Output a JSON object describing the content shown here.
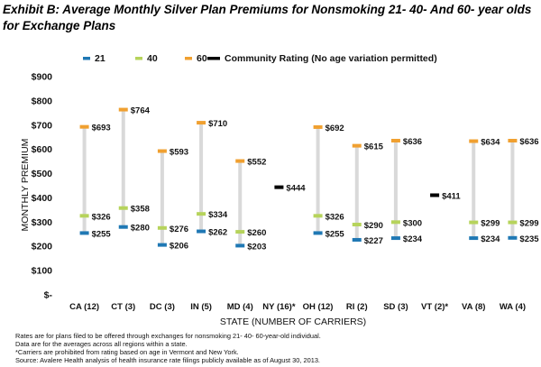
{
  "title": "Exhibit B: Average Monthly Silver Plan Premiums for Nonsmoking 21- 40- And 60- year olds for Exchange Plans",
  "chart_data": {
    "type": "range-dot",
    "xlabel": "STATE (NUMBER OF CARRIERS)",
    "ylabel": "MONTHLY PREMIUM",
    "ylim": [
      0,
      900
    ],
    "yticks": [
      0,
      100,
      200,
      300,
      400,
      500,
      600,
      700,
      800,
      900
    ],
    "ytick_labels": [
      "$-",
      "$100",
      "$200",
      "$300",
      "$400",
      "$500",
      "$600",
      "$700",
      "$800",
      "$900"
    ],
    "grid": false,
    "legend_position": "top",
    "categories": [
      "CA (12)",
      "CT (3)",
      "DC (3)",
      "IN (5)",
      "MD (4)",
      "NY (16)*",
      "OH (12)",
      "RI (2)",
      "SD (3)",
      "VT (2)*",
      "VA (8)",
      "WA (4)"
    ],
    "series": [
      {
        "name": "21",
        "color": "#1f78b4",
        "values": [
          255,
          280,
          206,
          262,
          203,
          null,
          255,
          227,
          234,
          null,
          234,
          235
        ],
        "labels": [
          "$255",
          "$280",
          "$206",
          "$262",
          "$203",
          "",
          "$255",
          "$227",
          "$234",
          "",
          "$234",
          "$235"
        ]
      },
      {
        "name": "40",
        "color": "#b6d35b",
        "values": [
          326,
          358,
          276,
          334,
          260,
          null,
          326,
          290,
          300,
          null,
          299,
          299
        ],
        "labels": [
          "$326",
          "$358",
          "$276",
          "$334",
          "$260",
          "",
          "$326",
          "$290",
          "$300",
          "",
          "$299",
          "$299"
        ]
      },
      {
        "name": "60",
        "color": "#f0a030",
        "values": [
          693,
          764,
          593,
          710,
          552,
          null,
          692,
          615,
          636,
          null,
          634,
          636
        ],
        "labels": [
          "$693",
          "$764",
          "$593",
          "$710",
          "$552",
          "",
          "$692",
          "$615",
          "$636",
          "",
          "$634",
          "$636"
        ]
      },
      {
        "name": "Community Rating (No age variation permitted)",
        "color": "#000000",
        "values": [
          null,
          null,
          null,
          null,
          null,
          444,
          null,
          null,
          null,
          411,
          null,
          null
        ],
        "labels": [
          "",
          "",
          "",
          "",
          "",
          "$444",
          "",
          "",
          "",
          "$411",
          "",
          ""
        ]
      }
    ],
    "range_line_color": "#d9d9d9"
  },
  "notes": [
    "Rates are for plans filed to be offered through exchanges for nonsmoking  21- 40- 60-year-old individual.",
    "Data are for the averages across all regions within a state.",
    "*Carriers are prohibited from rating based on age in Vermont and New York.",
    "Source: Avalere Health analysis of health insurance rate filings publicly available as of August 30, 2013."
  ]
}
